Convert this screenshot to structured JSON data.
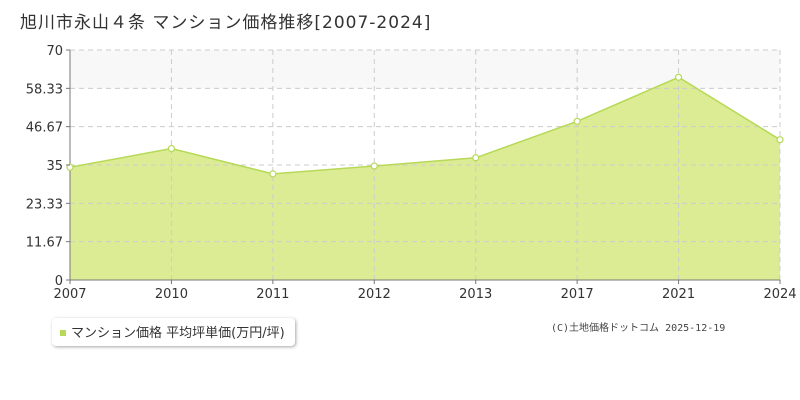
{
  "header": {
    "title": "旭川市永山４条 マンション価格推移[2007-2024]"
  },
  "legend": {
    "label": "マンション価格 平均坪単価(万円/坪)"
  },
  "credit": {
    "text": "(C)土地価格ドットコム 2025-12-19"
  },
  "colors": {
    "fill": "#dcec94",
    "line": "#b6d957",
    "marker_stroke": "#b6d957",
    "marker_fill": "#ffffff",
    "grid": "#cccccc",
    "axis": "#777777",
    "band": "#f8f8f8",
    "legend_swatch": "#b6d957"
  },
  "chart_data": {
    "type": "area",
    "title": "旭川市永山４条 マンション価格推移[2007-2024]",
    "categories": [
      "2007",
      "2010",
      "2011",
      "2012",
      "2013",
      "2017",
      "2021",
      "2024"
    ],
    "series": [
      {
        "name": "マンション価格 平均坪単価(万円/坪)",
        "values": [
          34.3,
          40.0,
          32.3,
          34.7,
          37.2,
          48.3,
          61.7,
          42.7
        ]
      }
    ],
    "ylim": [
      0,
      70
    ],
    "yticks": [
      "0",
      "11.67",
      "23.33",
      "35",
      "46.67",
      "58.33",
      "70"
    ],
    "grid": true,
    "xlabel": "",
    "ylabel": ""
  }
}
